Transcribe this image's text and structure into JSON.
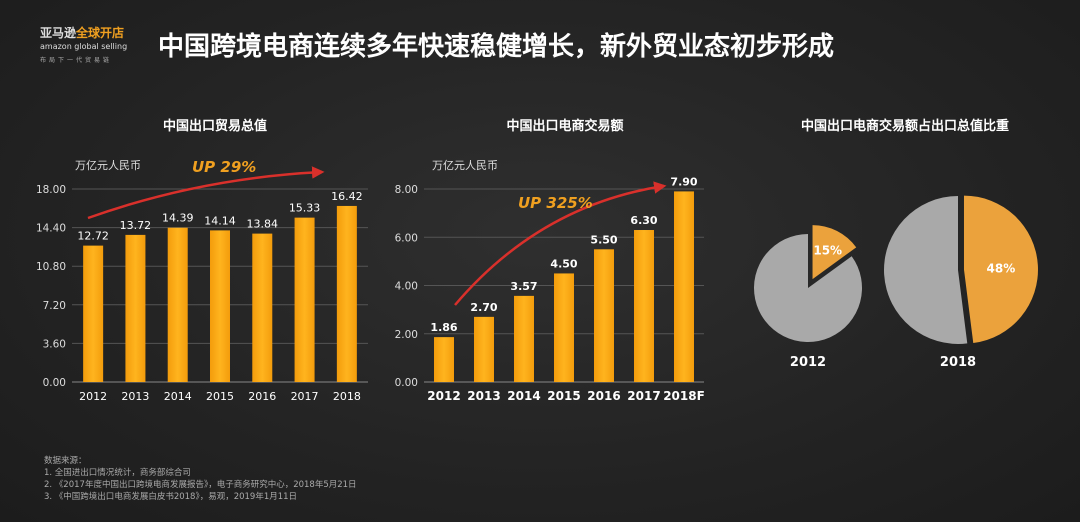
{
  "header": {
    "logo": {
      "cn_part1": "亚马逊",
      "cn_part2": "全球开店",
      "en": "amazon global selling",
      "slogan": "布局下一代贸易链"
    },
    "title": "中国跨境电商连续多年快速稳健增长，新外贸业态初步形成"
  },
  "colors": {
    "bar": "#f5a50f",
    "bar_light": "#ffb820",
    "pie_share": "#eba23c",
    "pie_rest": "#a9a9a9",
    "arrow": "#d9302b",
    "up_text": "#f0a020"
  },
  "chart_data": [
    {
      "type": "bar",
      "title": "中国出口贸易总值",
      "ylabel": "万亿元人民币",
      "annotation": "UP 29%",
      "categories": [
        "2012",
        "2013",
        "2014",
        "2015",
        "2016",
        "2017",
        "2018"
      ],
      "values": [
        12.72,
        13.72,
        14.39,
        14.14,
        13.84,
        15.33,
        16.42
      ],
      "value_labels": [
        "12.72",
        "13.72",
        "14.39",
        "14.14",
        "13.84",
        "15.33",
        "16.42"
      ],
      "ylim": [
        0,
        18
      ],
      "yticks": [
        "0.00",
        "3.60",
        "7.20",
        "10.80",
        "14.40",
        "18.00"
      ],
      "grid": true
    },
    {
      "type": "bar",
      "title": "中国出口电商交易额",
      "ylabel": "万亿元人民币",
      "annotation": "UP 325%",
      "categories": [
        "2012",
        "2013",
        "2014",
        "2015",
        "2016",
        "2017",
        "2018F"
      ],
      "values": [
        1.86,
        2.7,
        3.57,
        4.5,
        5.5,
        6.3,
        7.9
      ],
      "value_labels": [
        "1.86",
        "2.70",
        "3.57",
        "4.50",
        "5.50",
        "6.30",
        "7.90"
      ],
      "ylim": [
        0,
        8
      ],
      "yticks": [
        "0.00",
        "2.00",
        "4.00",
        "6.00",
        "8.00"
      ],
      "grid": true
    },
    {
      "type": "pie",
      "title": "中国出口电商交易额占出口总值比重",
      "pies": [
        {
          "label": "2012",
          "share": 15,
          "share_label": "15%"
        },
        {
          "label": "2018",
          "share": 48,
          "share_label": "48%"
        }
      ]
    }
  ],
  "sources": {
    "heading": "数据来源：",
    "items": [
      "1. 全国进出口情况统计，商务部综合司",
      "2. 《2017年度中国出口跨境电商发展报告》，电子商务研究中心，2018年5月21日",
      "3. 《中国跨境出口电商发展白皮书2018》，易观，2019年1月11日"
    ]
  }
}
